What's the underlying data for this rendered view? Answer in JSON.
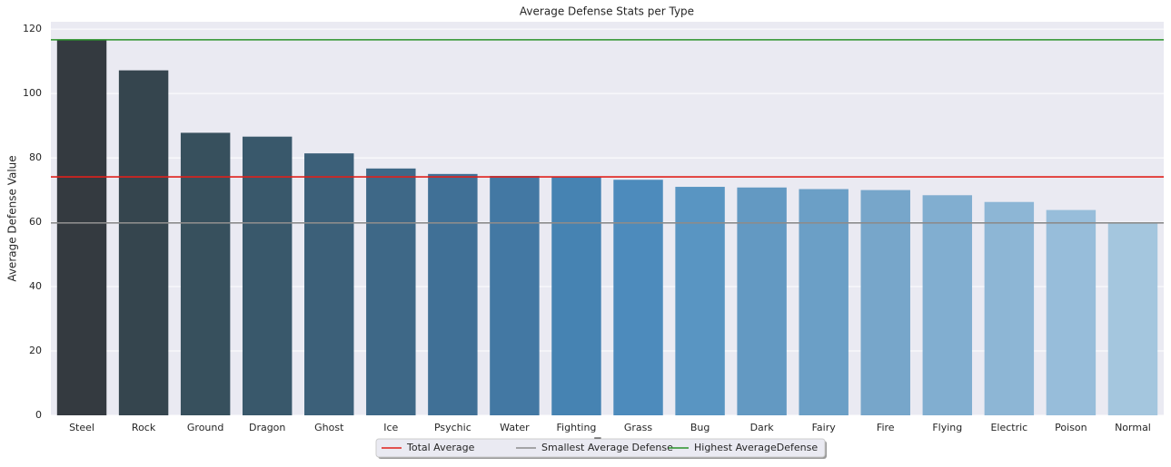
{
  "chart_data": {
    "type": "bar",
    "title": "Average Defense Stats per Type",
    "x_label": "Type",
    "y_label": "Average Defense Value",
    "categories": [
      "Steel",
      "Rock",
      "Ground",
      "Dragon",
      "Ghost",
      "Ice",
      "Psychic",
      "Water",
      "Fighting",
      "Grass",
      "Bug",
      "Dark",
      "Fairy",
      "Fire",
      "Flying",
      "Electric",
      "Poison",
      "Normal"
    ],
    "values": [
      116.7,
      107.2,
      87.8,
      86.6,
      81.4,
      76.7,
      75.0,
      74.4,
      74.2,
      73.2,
      71.0,
      70.8,
      70.3,
      70.0,
      68.4,
      66.3,
      63.8,
      59.8
    ],
    "colors": [
      "#343a40",
      "#35454e",
      "#37505d",
      "#39586b",
      "#3c6079",
      "#3e6887",
      "#407096",
      "#4378a3",
      "#4683b2",
      "#4d8bbc",
      "#5995c2",
      "#6399c2",
      "#6b9fc6",
      "#77a6ca",
      "#81aed0",
      "#8db6d5",
      "#97bdda",
      "#a4c6de"
    ],
    "reference_lines": [
      {
        "name": "Total Average",
        "value": 74.1,
        "color": "#e0201b"
      },
      {
        "name": "Smallest Average Defense",
        "value": 59.8,
        "color": "#8c8c8c"
      },
      {
        "name": "Highest AverageDefense",
        "value": 116.7,
        "color": "#2a922a"
      }
    ],
    "ylim": [
      0,
      122.3
    ],
    "yticks": [
      0,
      20,
      40,
      60,
      80,
      100,
      120
    ],
    "grid": true
  }
}
